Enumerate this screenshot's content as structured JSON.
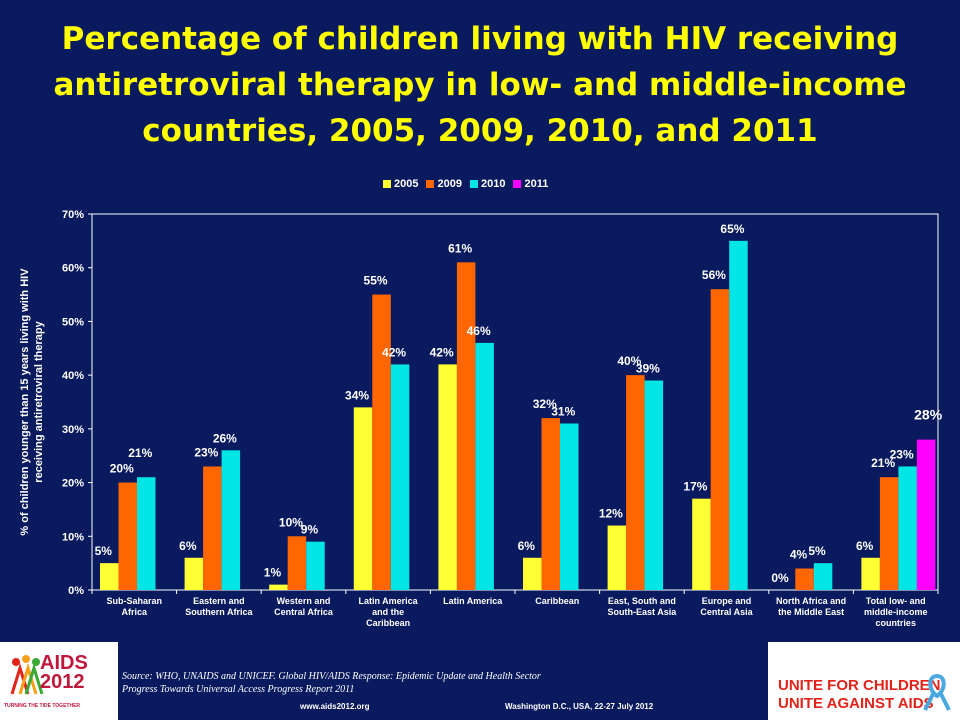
{
  "title": "Percentage of children living with HIV receiving antiretroviral therapy in low- and middle-income countries, 2005, 2009, 2010, and 2011",
  "colors": {
    "background": "#0a1a5e",
    "title": "#ffff00",
    "2005": "#ffff33",
    "2009": "#ff6600",
    "2010": "#00e5e5",
    "2011": "#ff00ff"
  },
  "chart_data": {
    "type": "bar",
    "ylabel": "% of children younger than 15 years living with HIV receiving antiretroviral therapy",
    "ylim": [
      0,
      70
    ],
    "yticks": [
      "0%",
      "10%",
      "20%",
      "30%",
      "40%",
      "50%",
      "60%",
      "70%"
    ],
    "legend_position": "top",
    "grid": false,
    "categories": [
      [
        "Sub-Saharan",
        "Africa"
      ],
      [
        "Eastern and",
        "Southern Africa"
      ],
      [
        "Western and",
        "Central Africa"
      ],
      [
        "Latin America",
        "and the",
        "Caribbean"
      ],
      [
        "Latin America"
      ],
      [
        "Caribbean"
      ],
      [
        "East, South and",
        "South-East Asia"
      ],
      [
        "Europe and",
        "Central Asia"
      ],
      [
        "North Africa and",
        "the Middle East"
      ],
      [
        "Total low- and",
        "middle-income",
        "countries"
      ]
    ],
    "series": [
      {
        "name": "2005",
        "color": "#ffff33",
        "values": [
          5,
          6,
          1,
          34,
          42,
          6,
          12,
          17,
          0,
          6
        ],
        "labels": [
          "5%",
          "6%",
          "1%",
          "34%",
          "42%",
          "6%",
          "12%",
          "17%",
          "0%",
          "6%"
        ]
      },
      {
        "name": "2009",
        "color": "#ff6600",
        "values": [
          20,
          23,
          10,
          55,
          61,
          32,
          40,
          56,
          4,
          21
        ],
        "labels": [
          "20%",
          "23%",
          "10%",
          "55%",
          "61%",
          "32%",
          "40%",
          "56%",
          "4%",
          "21%"
        ]
      },
      {
        "name": "2010",
        "color": "#00e5e5",
        "values": [
          21,
          26,
          9,
          42,
          46,
          31,
          39,
          65,
          5,
          23
        ],
        "labels": [
          "21%",
          "26%",
          "9%",
          "42%",
          "46%",
          "31%",
          "39%",
          "65%",
          "5%",
          "23%"
        ]
      },
      {
        "name": "2011",
        "color": "#ff00ff",
        "values": [
          null,
          null,
          null,
          null,
          null,
          null,
          null,
          null,
          null,
          28
        ],
        "labels": [
          null,
          null,
          null,
          null,
          null,
          null,
          null,
          null,
          null,
          "28%"
        ]
      }
    ]
  },
  "footer": {
    "source_line1": "Source: WHO, UNAIDS and UNICEF.  Global HIV/AIDS Response:  Epidemic Update and Health Sector",
    "source_line2": "Progress Towards Universal Access  Progress Report 2011",
    "website": "www.aids2012.org",
    "location": "Washington D.C., USA, 22-27 July 2012",
    "aids_logo_line1": "AIDS",
    "aids_logo_line2": "2012",
    "aids_tagline": "TURNING THE TIDE TOGETHER",
    "unicef_line1": "UNITE FOR CHILDREN",
    "unicef_line2": "UNITE AGAINST AIDS"
  }
}
